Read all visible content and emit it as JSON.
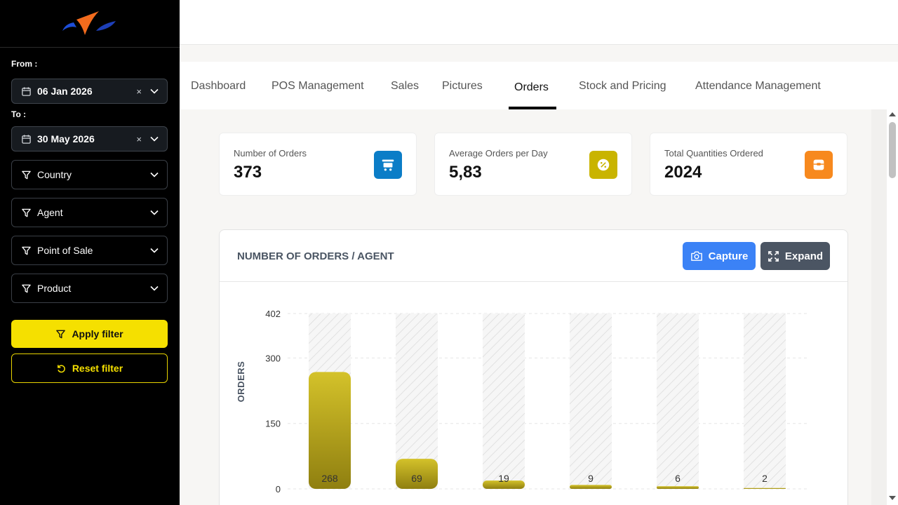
{
  "sidebar": {
    "from_label": "From :",
    "to_label": "To :",
    "from_date": "06 Jan 2026",
    "to_date": "30 May 2026",
    "clear_glyph": "×",
    "filters": [
      {
        "label": "Country"
      },
      {
        "label": "Agent"
      },
      {
        "label": "Point of Sale"
      },
      {
        "label": "Product"
      }
    ],
    "apply_label": "Apply filter",
    "reset_label": "Reset filter",
    "accent": "#f5e000"
  },
  "tabs": [
    {
      "label": "Dashboard"
    },
    {
      "label": "POS Management"
    },
    {
      "label": "Sales"
    },
    {
      "label": "Pictures"
    },
    {
      "label": "Orders",
      "active": true
    },
    {
      "label": "Stock and Pricing"
    },
    {
      "label": "Attendance Management"
    }
  ],
  "kpis": [
    {
      "label": "Number of Orders",
      "value": "373",
      "icon": "cart-icon",
      "color": "#0b7dc7"
    },
    {
      "label": "Average Orders per Day",
      "value": "5,83",
      "icon": "percent-icon",
      "color": "#c9b400"
    },
    {
      "label": "Total Quantities Ordered",
      "value": "2024",
      "icon": "box-icon",
      "color": "#f7891e"
    }
  ],
  "card": {
    "title": "NUMBER OF ORDERS / AGENT",
    "capture_label": "Capture",
    "expand_label": "Expand"
  },
  "chart_data": {
    "type": "bar",
    "categories": [
      "",
      "",
      "",
      "",
      "",
      ""
    ],
    "values": [
      268,
      69,
      19,
      9,
      6,
      2
    ],
    "ylabel": "ORDERS",
    "xlabel": "",
    "yticks": [
      0,
      150,
      300,
      402
    ],
    "ylim": [
      0,
      402
    ],
    "bar_color": "#b8a81a",
    "grid": true
  }
}
